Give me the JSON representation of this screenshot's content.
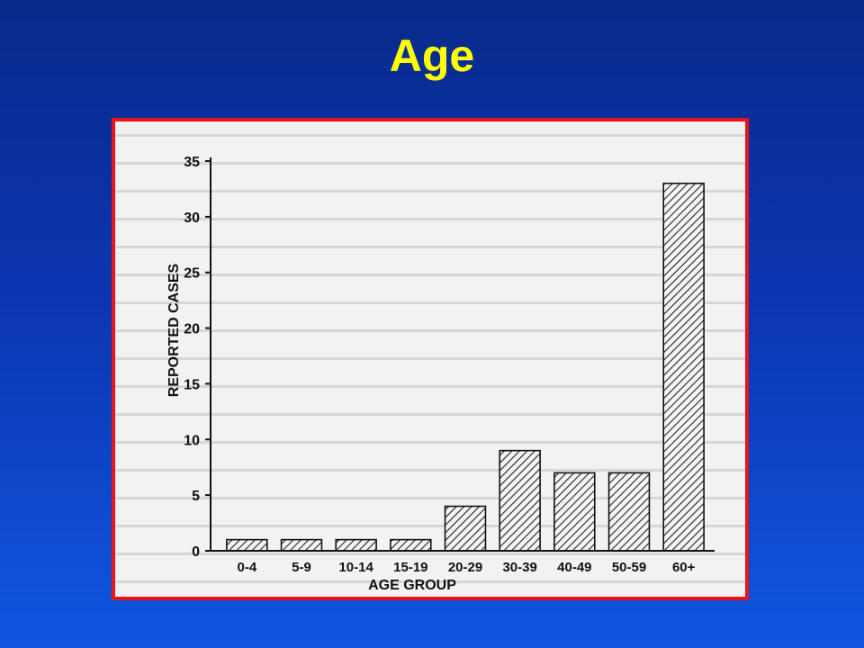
{
  "slide": {
    "title": "Age"
  },
  "colors": {
    "title": "#ffff00",
    "frame_border": "#e8141b",
    "background_top": "#0a2a8c",
    "background_bottom": "#1156e0",
    "bar_hatch": "#222222"
  },
  "chart_data": {
    "type": "bar",
    "categories": [
      "0-4",
      "5-9",
      "10-14",
      "15-19",
      "20-29",
      "30-39",
      "40-49",
      "50-59",
      "60+"
    ],
    "values": [
      1,
      1,
      1,
      1,
      4,
      9,
      7,
      7,
      33
    ],
    "title": "",
    "xlabel": "AGE GROUP",
    "ylabel": "REPORTED CASES",
    "ylim": [
      0,
      35
    ],
    "yticks": [
      0,
      5,
      10,
      15,
      20,
      25,
      30,
      35
    ],
    "bar_fill": "diagonal-hatch",
    "grid": false
  }
}
